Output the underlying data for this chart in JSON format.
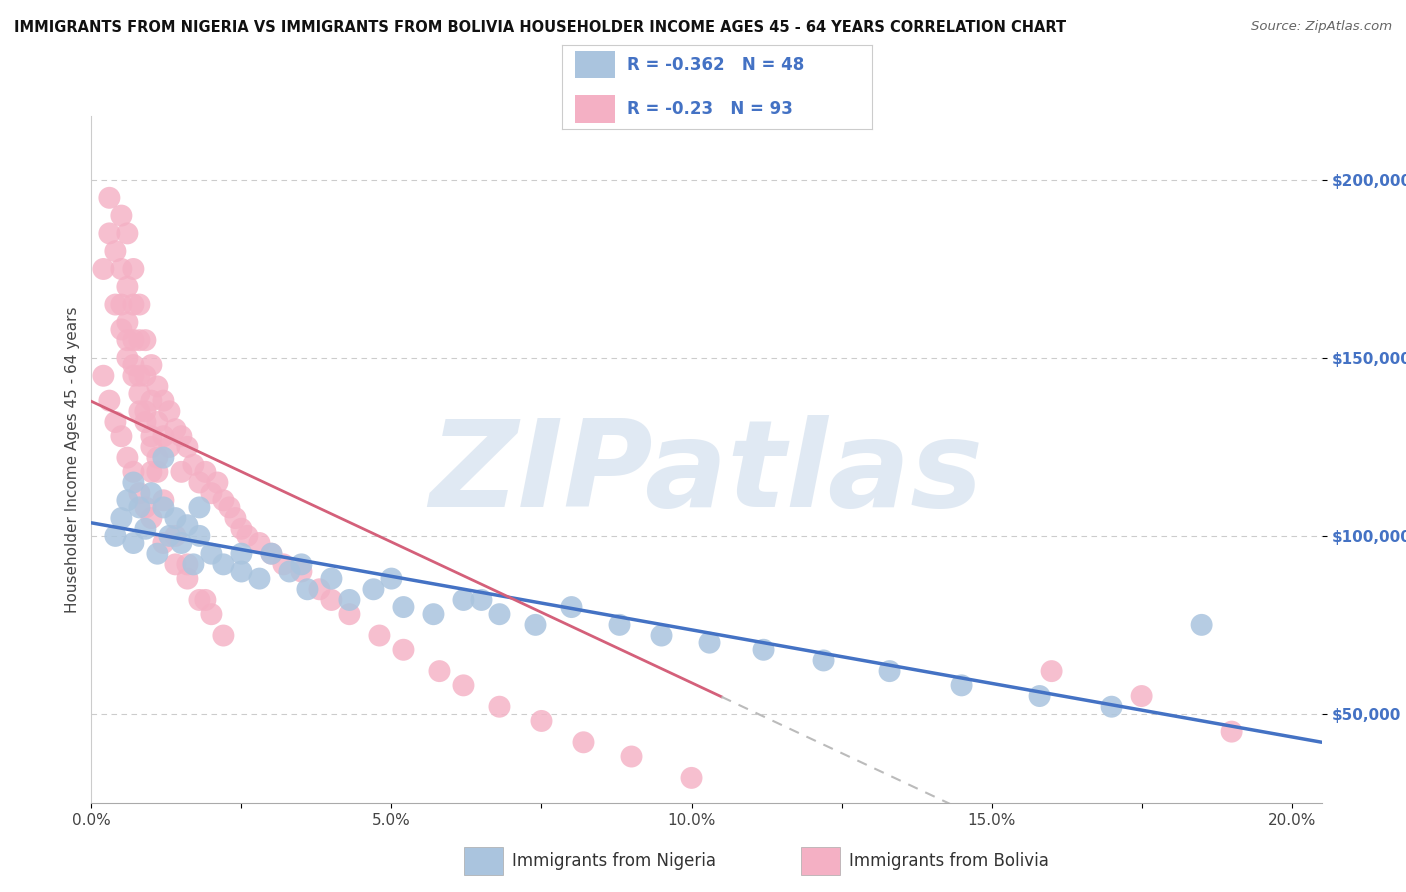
{
  "title": "IMMIGRANTS FROM NIGERIA VS IMMIGRANTS FROM BOLIVIA HOUSEHOLDER INCOME AGES 45 - 64 YEARS CORRELATION CHART",
  "source": "Source: ZipAtlas.com",
  "ylabel": "Householder Income Ages 45 - 64 years",
  "xlim": [
    0.0,
    0.205
  ],
  "ylim": [
    25000,
    218000
  ],
  "yticks": [
    50000,
    100000,
    150000,
    200000
  ],
  "ytick_labels": [
    "$50,000",
    "$100,000",
    "$150,000",
    "$200,000"
  ],
  "xticks": [
    0.0,
    0.025,
    0.05,
    0.075,
    0.1,
    0.125,
    0.15,
    0.175,
    0.2
  ],
  "xtick_labels": [
    "0.0%",
    "",
    "5.0%",
    "",
    "10.0%",
    "",
    "15.0%",
    "",
    "20.0%"
  ],
  "nigeria_R": -0.362,
  "nigeria_N": 48,
  "bolivia_R": -0.23,
  "bolivia_N": 93,
  "nigeria_color": "#aac4de",
  "bolivia_color": "#f4b0c4",
  "nigeria_line_color": "#4472c4",
  "bolivia_line_color": "#d4607a",
  "watermark": "ZIPatlas",
  "watermark_color": "#c8d8ea",
  "background_color": "#ffffff",
  "grid_color": "#cccccc",
  "nigeria_x": [
    0.004,
    0.005,
    0.006,
    0.007,
    0.008,
    0.009,
    0.01,
    0.011,
    0.012,
    0.013,
    0.014,
    0.015,
    0.016,
    0.017,
    0.018,
    0.02,
    0.022,
    0.025,
    0.028,
    0.03,
    0.033,
    0.036,
    0.04,
    0.043,
    0.047,
    0.052,
    0.057,
    0.062,
    0.068,
    0.074,
    0.08,
    0.088,
    0.095,
    0.103,
    0.112,
    0.122,
    0.133,
    0.145,
    0.158,
    0.17,
    0.007,
    0.012,
    0.018,
    0.025,
    0.035,
    0.05,
    0.065,
    0.185
  ],
  "nigeria_y": [
    100000,
    105000,
    110000,
    98000,
    108000,
    102000,
    112000,
    95000,
    108000,
    100000,
    105000,
    98000,
    103000,
    92000,
    100000,
    95000,
    92000,
    90000,
    88000,
    95000,
    90000,
    85000,
    88000,
    82000,
    85000,
    80000,
    78000,
    82000,
    78000,
    75000,
    80000,
    75000,
    72000,
    70000,
    68000,
    65000,
    62000,
    58000,
    55000,
    52000,
    115000,
    122000,
    108000,
    95000,
    92000,
    88000,
    82000,
    75000
  ],
  "bolivia_x": [
    0.002,
    0.003,
    0.003,
    0.004,
    0.004,
    0.005,
    0.005,
    0.005,
    0.006,
    0.006,
    0.006,
    0.006,
    0.007,
    0.007,
    0.007,
    0.007,
    0.008,
    0.008,
    0.008,
    0.008,
    0.009,
    0.009,
    0.009,
    0.01,
    0.01,
    0.01,
    0.01,
    0.011,
    0.011,
    0.011,
    0.012,
    0.012,
    0.013,
    0.013,
    0.014,
    0.015,
    0.015,
    0.016,
    0.017,
    0.018,
    0.019,
    0.02,
    0.021,
    0.022,
    0.023,
    0.024,
    0.025,
    0.026,
    0.028,
    0.03,
    0.032,
    0.035,
    0.038,
    0.04,
    0.043,
    0.048,
    0.052,
    0.058,
    0.062,
    0.068,
    0.075,
    0.082,
    0.09,
    0.1,
    0.002,
    0.003,
    0.004,
    0.005,
    0.006,
    0.007,
    0.008,
    0.009,
    0.01,
    0.012,
    0.014,
    0.016,
    0.018,
    0.02,
    0.005,
    0.007,
    0.008,
    0.009,
    0.01,
    0.011,
    0.012,
    0.014,
    0.016,
    0.019,
    0.022,
    0.006,
    0.16,
    0.175,
    0.19
  ],
  "bolivia_y": [
    175000,
    195000,
    185000,
    180000,
    165000,
    190000,
    175000,
    165000,
    185000,
    170000,
    160000,
    150000,
    175000,
    165000,
    155000,
    145000,
    165000,
    155000,
    145000,
    135000,
    155000,
    145000,
    135000,
    148000,
    138000,
    128000,
    118000,
    142000,
    132000,
    122000,
    138000,
    128000,
    135000,
    125000,
    130000,
    128000,
    118000,
    125000,
    120000,
    115000,
    118000,
    112000,
    115000,
    110000,
    108000,
    105000,
    102000,
    100000,
    98000,
    95000,
    92000,
    90000,
    85000,
    82000,
    78000,
    72000,
    68000,
    62000,
    58000,
    52000,
    48000,
    42000,
    38000,
    32000,
    145000,
    138000,
    132000,
    128000,
    122000,
    118000,
    112000,
    108000,
    105000,
    98000,
    92000,
    88000,
    82000,
    78000,
    158000,
    148000,
    140000,
    132000,
    125000,
    118000,
    110000,
    100000,
    92000,
    82000,
    72000,
    155000,
    62000,
    55000,
    45000
  ]
}
